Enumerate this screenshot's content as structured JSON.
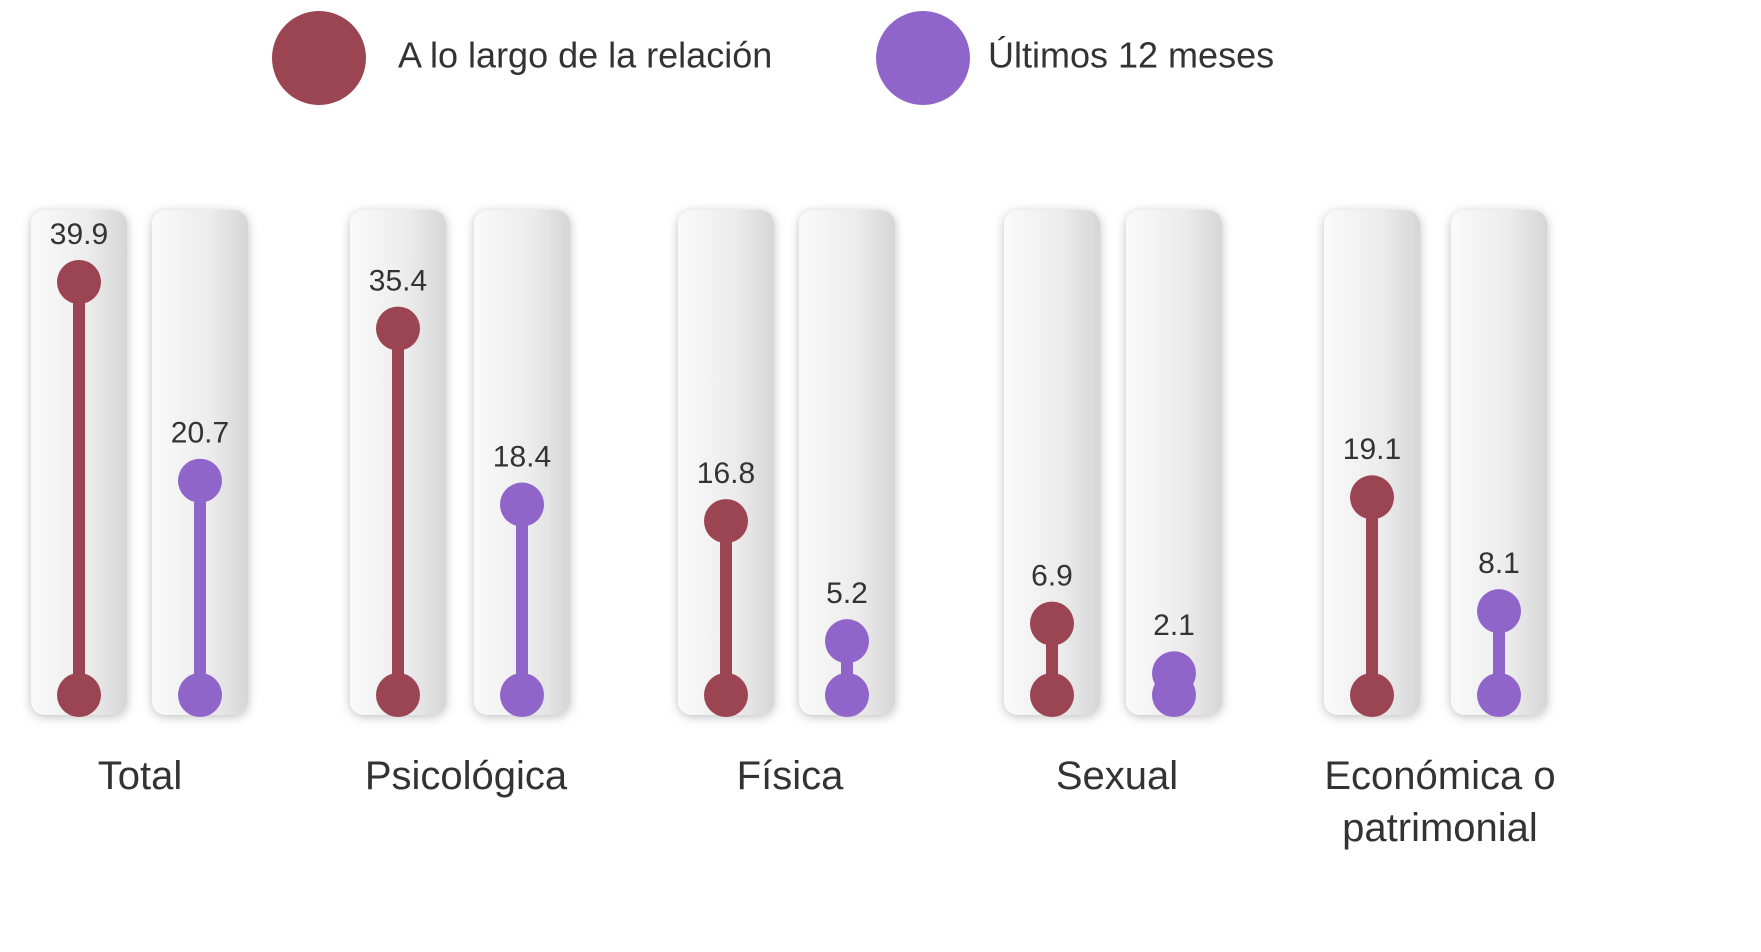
{
  "chart_data": {
    "type": "lollipop",
    "categories": [
      "Total",
      "Psicológica",
      "Física",
      "Sexual",
      "Económica o patrimonial"
    ],
    "series": [
      {
        "name": "A lo largo de la relación",
        "color": "#9b4452",
        "values": [
          39.9,
          35.4,
          16.8,
          6.9,
          19.1
        ]
      },
      {
        "name": "Últimos 12 meses",
        "color": "#9065c9",
        "values": [
          20.7,
          18.4,
          5.2,
          2.1,
          8.1
        ]
      }
    ],
    "legend": "top"
  }
}
